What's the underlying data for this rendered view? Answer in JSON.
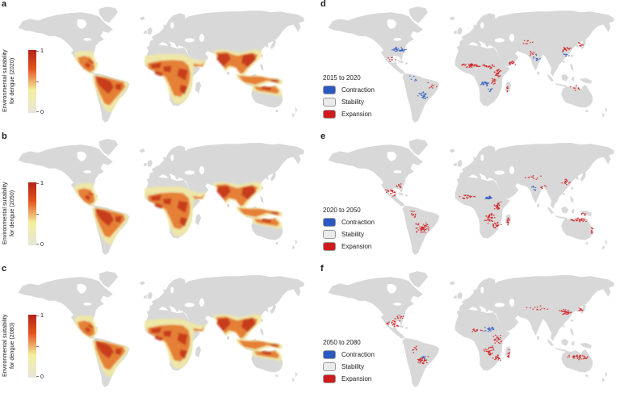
{
  "colors": {
    "expansion": "#d11a1e",
    "contraction": "#2b59c3",
    "stability": "#ebebeb",
    "land": "#d8d8d8",
    "ocean": "#ffffff",
    "heat_pale": "#f1e9a2",
    "heat_orange": "#e4762f",
    "heat_red": "#c4381c",
    "cbar_top": "#b32217",
    "cbar_upper": "#e2551f",
    "cbar_mid": "#f4efa0",
    "cbar_bottom": "#e6e6d9",
    "swatch_border": "#9a9a9a",
    "text": "#1a1a1a"
  },
  "panels": [
    {
      "letter": "a",
      "type": "suitability-map",
      "label_line1": "Environmental suitability",
      "label_line2": "for dengue (2020)",
      "cbar_max": "1",
      "cbar_min": "0"
    },
    {
      "letter": "b",
      "type": "suitability-map",
      "label_line1": "Environmental suitability",
      "label_line2": "for dengue (2050)",
      "cbar_max": "1",
      "cbar_min": "0"
    },
    {
      "letter": "c",
      "type": "suitability-map",
      "label_line1": "Environmental suitability",
      "label_line2": "for dengue (2080)",
      "cbar_max": "1",
      "cbar_min": "0"
    },
    {
      "letter": "d",
      "type": "change-map",
      "legend_title": "2015 to 2020",
      "legend": [
        {
          "label": "Contraction"
        },
        {
          "label": "Stability"
        },
        {
          "label": "Expansion"
        }
      ],
      "clusters": [
        [
          "c",
          95,
          56,
          10,
          3.5,
          34
        ],
        [
          "c",
          124,
          112,
          8,
          6,
          26
        ],
        [
          "c",
          200,
          97,
          6,
          3,
          26
        ],
        [
          "c",
          206,
          104,
          4,
          3,
          8
        ],
        [
          "c",
          262,
          66,
          6,
          5,
          10
        ],
        [
          "c",
          298,
          62,
          6,
          4,
          8
        ],
        [
          "c",
          112,
          91,
          6,
          4,
          6
        ],
        [
          "e",
          182,
          75,
          13,
          2.5,
          42
        ],
        [
          "e",
          205,
          76,
          8,
          3,
          20
        ],
        [
          "e",
          214,
          84,
          6,
          6,
          26
        ],
        [
          "e",
          210,
          94,
          5,
          5,
          14
        ],
        [
          "e",
          232,
          72,
          6,
          3,
          14
        ],
        [
          "e",
          298,
          55,
          7,
          3,
          18
        ],
        [
          "e",
          316,
          50,
          4,
          3,
          8
        ],
        [
          "e",
          250,
          47,
          10,
          3,
          8
        ],
        [
          "e",
          86,
          68,
          6,
          4,
          8
        ],
        [
          "e",
          227,
          103,
          2,
          5,
          6
        ],
        [
          "e",
          310,
          103,
          8,
          4,
          8
        ],
        [
          "e",
          258,
          60,
          8,
          4,
          8
        ],
        [
          "e",
          135,
          100,
          6,
          5,
          8
        ]
      ]
    },
    {
      "letter": "e",
      "type": "change-map",
      "legend_title": "2020 to 2050",
      "legend": [
        {
          "label": "Contraction"
        },
        {
          "label": "Stability"
        },
        {
          "label": "Expansion"
        }
      ],
      "clusters": [
        [
          "e",
          124,
          112,
          10,
          7,
          48
        ],
        [
          "e",
          112,
          96,
          5,
          6,
          12
        ],
        [
          "e",
          86,
          68,
          8,
          6,
          22
        ],
        [
          "e",
          94,
          60,
          6,
          3,
          10
        ],
        [
          "e",
          180,
          74,
          12,
          2.5,
          20
        ],
        [
          "c",
          205,
          75,
          8,
          2.5,
          24
        ],
        [
          "e",
          215,
          85,
          6,
          6,
          26
        ],
        [
          "e",
          205,
          100,
          8,
          6,
          36
        ],
        [
          "e",
          214,
          108,
          6,
          5,
          20
        ],
        [
          "e",
          228,
          104,
          2.5,
          7,
          12
        ],
        [
          "e",
          312,
          102,
          12,
          3,
          30
        ],
        [
          "e",
          330,
          115,
          3,
          6,
          8
        ],
        [
          "e",
          260,
          50,
          14,
          3,
          10
        ],
        [
          "e",
          298,
          55,
          8,
          4,
          14
        ],
        [
          "c",
          260,
          63,
          5,
          4,
          8
        ],
        [
          "e",
          270,
          62,
          4,
          3,
          6
        ],
        [
          "e",
          320,
          95,
          5,
          2,
          6
        ]
      ]
    },
    {
      "letter": "f",
      "type": "change-map",
      "legend_title": "2050 to 2080",
      "legend": [
        {
          "label": "Contraction"
        },
        {
          "label": "Stability"
        },
        {
          "label": "Expansion"
        }
      ],
      "clusters": [
        [
          "e",
          88,
          66,
          9,
          6,
          26
        ],
        [
          "e",
          97,
          59,
          5,
          3,
          10
        ],
        [
          "e",
          124,
          112,
          9,
          6,
          32
        ],
        [
          "c",
          126,
          108,
          4,
          3,
          6
        ],
        [
          "c",
          205,
          74,
          9,
          3,
          22
        ],
        [
          "e",
          190,
          75,
          8,
          2.5,
          12
        ],
        [
          "e",
          214,
          86,
          6,
          6,
          22
        ],
        [
          "e",
          205,
          100,
          8,
          6,
          30
        ],
        [
          "e",
          215,
          109,
          6,
          5,
          18
        ],
        [
          "e",
          228,
          104,
          2.5,
          7,
          10
        ],
        [
          "e",
          298,
          53,
          9,
          4,
          32
        ],
        [
          "e",
          316,
          50,
          4,
          4,
          10
        ],
        [
          "e",
          262,
          48,
          16,
          3,
          12
        ],
        [
          "e",
          312,
          108,
          14,
          3,
          36
        ],
        [
          "e",
          115,
          98,
          4,
          5,
          8
        ]
      ]
    }
  ]
}
